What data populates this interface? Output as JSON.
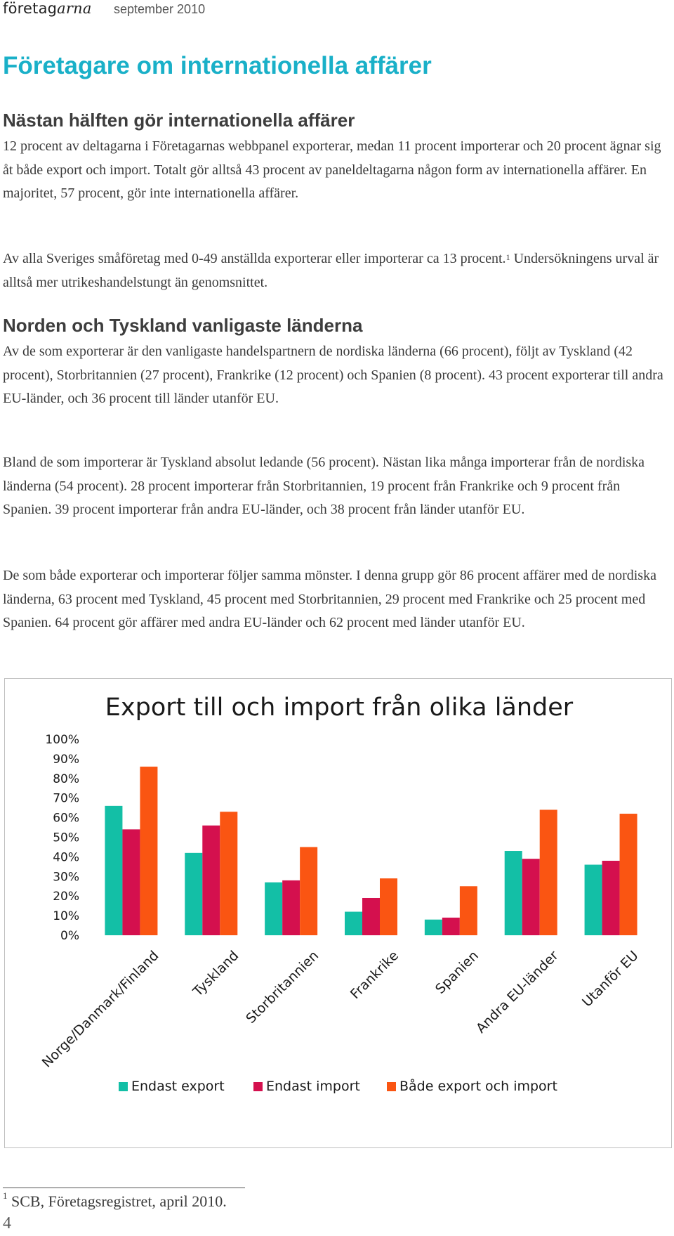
{
  "header": {
    "logo_plain": "företag",
    "logo_italic": "arna",
    "date": "september 2010"
  },
  "title": "Företagare om internationella affärer",
  "section1": {
    "heading": "Nästan hälften gör internationella affärer",
    "p1": "12 procent av deltagarna i Företagarnas webbpanel exporterar, medan 11 procent importerar och 20 procent ägnar sig åt både export och import. Totalt gör alltså 43 procent av paneldeltagarna någon form av internationella affärer. En majoritet, 57 procent, gör inte internationella affärer.",
    "p2a": "Av alla Sveriges småföretag med 0-49 anställda exporterar eller importerar ca 13 procent.",
    "p2_footnote_mark": "1",
    "p2b": "Undersökningens urval är alltså mer utrikeshandelstungt än genomsnittet."
  },
  "section2": {
    "heading": "Norden och Tyskland vanligaste länderna",
    "p1": "Av de som exporterar är den vanligaste handelspartnern de nordiska länderna (66 procent), följt av Tyskland (42 procent), Storbritannien (27 procent), Frankrike (12 procent) och Spanien (8 procent). 43 procent exporterar till andra EU-länder, och 36 procent till länder utanför EU.",
    "p2": "Bland de som importerar är Tyskland absolut ledande (56 procent). Nästan lika många importerar från de nordiska länderna (54 procent). 28 procent importerar från Storbritannien, 19 procent från Frankrike och 9 procent från Spanien. 39 procent importerar från andra EU-länder, och 38 procent från länder utanför EU.",
    "p3": "De som både exporterar och importerar följer samma mönster. I denna grupp gör 86 procent affärer med de nordiska länderna, 63 procent med Tyskland, 45 procent med Storbritannien, 29 procent med Frankrike och 25 procent med Spanien. 64 procent gör affärer med andra EU-länder och 62 procent med länder utanför EU."
  },
  "chart_data": {
    "type": "bar",
    "title": "Export till och import från olika länder",
    "categories": [
      "Norge/Danmark/Finland",
      "Tyskland",
      "Storbritannien",
      "Frankrike",
      "Spanien",
      "Andra EU-länder",
      "Utanför EU"
    ],
    "series": [
      {
        "name": "Endast export",
        "color": "#13bfa6",
        "values": [
          66,
          42,
          27,
          12,
          8,
          43,
          36
        ]
      },
      {
        "name": "Endast import",
        "color": "#d4104e",
        "values": [
          54,
          56,
          28,
          19,
          9,
          39,
          38
        ]
      },
      {
        "name": "Både export och import",
        "color": "#fa5512",
        "values": [
          86,
          63,
          45,
          29,
          25,
          64,
          62
        ]
      }
    ],
    "ylim": [
      0,
      100
    ],
    "yticks": [
      "0%",
      "10%",
      "20%",
      "30%",
      "40%",
      "50%",
      "60%",
      "70%",
      "80%",
      "90%",
      "100%"
    ],
    "grid": false,
    "legend": "bottom",
    "xlabel": "",
    "ylabel": ""
  },
  "footnote": {
    "mark": "1",
    "text": "SCB, Företagsregistret, april 2010."
  },
  "page_number": "4"
}
